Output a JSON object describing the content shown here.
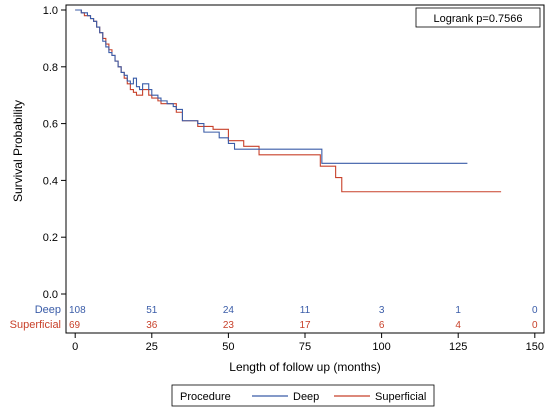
{
  "chart_data": {
    "type": "line",
    "subtype": "kaplan-meier-step",
    "xlabel": "Length of follow up (months)",
    "ylabel": "Survival Probability",
    "xlim": [
      -3,
      153
    ],
    "ylim": [
      0,
      1
    ],
    "x_ticks": [
      0,
      25,
      50,
      75,
      100,
      125,
      150
    ],
    "y_ticks": [
      0.0,
      0.2,
      0.4,
      0.6,
      0.8,
      1.0
    ],
    "x_tick_labels": [
      "0",
      "25",
      "50",
      "75",
      "100",
      "125",
      "150"
    ],
    "y_tick_labels": [
      "0.0",
      "0.2",
      "0.4",
      "0.6",
      "0.8",
      "1.0"
    ],
    "grid": false,
    "annotation": "Logrank p=0.7566",
    "legend": {
      "title": "Procedure",
      "placement": "bottom",
      "entries": [
        "Deep",
        "Superficial"
      ]
    },
    "series": [
      {
        "name": "Deep",
        "color": "#3a5ca8",
        "x": [
          0,
          2,
          4,
          5,
          6,
          7,
          8,
          9,
          10,
          11,
          12,
          13,
          14,
          15,
          16,
          17,
          18,
          19,
          20,
          21,
          22,
          24,
          25,
          27,
          28,
          30,
          32,
          33,
          35,
          40,
          42,
          45,
          47,
          48,
          50,
          52,
          55,
          80,
          80.5,
          128
        ],
        "y": [
          1.0,
          0.99,
          0.98,
          0.97,
          0.96,
          0.94,
          0.92,
          0.89,
          0.87,
          0.85,
          0.84,
          0.82,
          0.8,
          0.78,
          0.77,
          0.75,
          0.74,
          0.76,
          0.73,
          0.72,
          0.74,
          0.72,
          0.7,
          0.69,
          0.68,
          0.67,
          0.66,
          0.65,
          0.61,
          0.6,
          0.57,
          0.57,
          0.55,
          0.55,
          0.53,
          0.51,
          0.51,
          0.51,
          0.46,
          0.46
        ]
      },
      {
        "name": "Superficial",
        "color": "#c8412a",
        "x": [
          0,
          2,
          3,
          5,
          6,
          7,
          8,
          9,
          10,
          11,
          12,
          13,
          14,
          15,
          16,
          17,
          18,
          19,
          20,
          22,
          24,
          25,
          27,
          28,
          30,
          33,
          35,
          40,
          45,
          50,
          55,
          60,
          75,
          80,
          85,
          87,
          139
        ],
        "y": [
          1.0,
          0.99,
          0.98,
          0.97,
          0.96,
          0.94,
          0.92,
          0.9,
          0.88,
          0.86,
          0.84,
          0.82,
          0.8,
          0.78,
          0.76,
          0.74,
          0.72,
          0.71,
          0.7,
          0.72,
          0.7,
          0.69,
          0.68,
          0.67,
          0.67,
          0.64,
          0.61,
          0.59,
          0.58,
          0.54,
          0.52,
          0.49,
          0.49,
          0.45,
          0.41,
          0.36,
          0.36
        ]
      }
    ],
    "at_risk": {
      "times": [
        0,
        25,
        50,
        75,
        100,
        125,
        150
      ],
      "rows": [
        {
          "label": "Deep",
          "color": "#3a5ca8",
          "values": [
            "108",
            "51",
            "24",
            "11",
            "3",
            "1",
            "0"
          ]
        },
        {
          "label": "Superficial",
          "color": "#c8412a",
          "values": [
            "69",
            "36",
            "23",
            "17",
            "6",
            "4",
            "0"
          ]
        }
      ]
    }
  }
}
